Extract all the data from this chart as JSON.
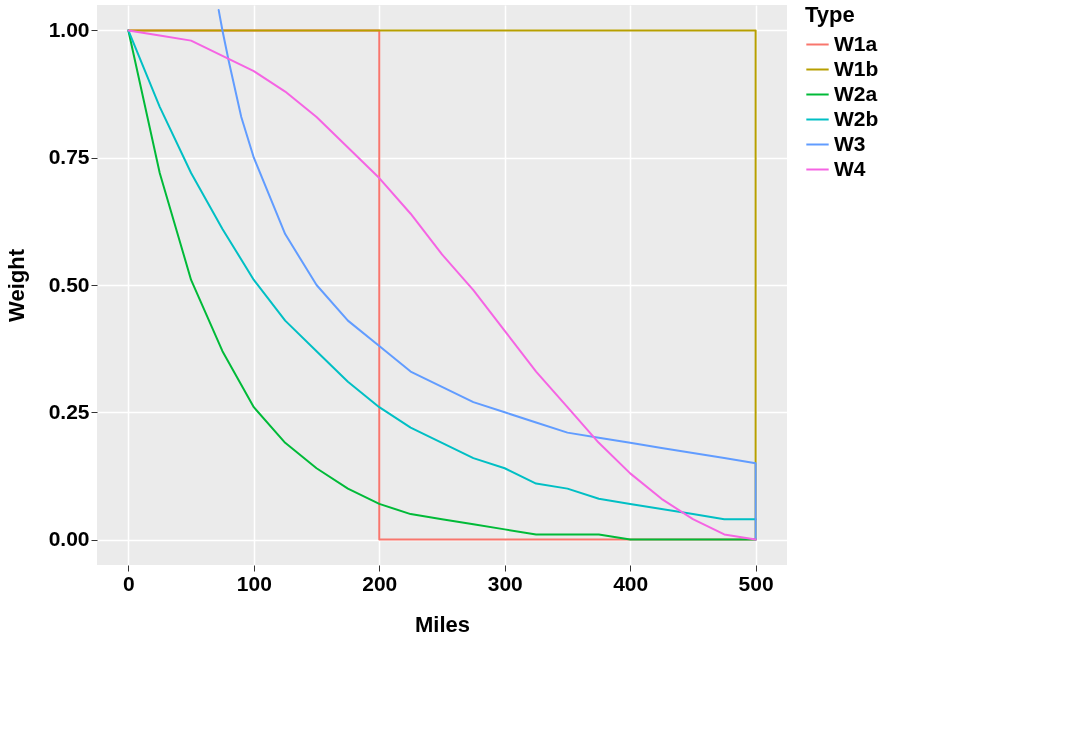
{
  "chart_data": {
    "type": "line",
    "xlabel": "Miles",
    "ylabel": "Weight",
    "legend_title": "Type",
    "legend": "right",
    "grid": true,
    "line_style": "solid",
    "marker": "none",
    "xlim": [
      -25,
      525
    ],
    "xticks": [
      0,
      100,
      200,
      300,
      400,
      500
    ],
    "ylim": [
      -0.05,
      1.05
    ],
    "yticks": [
      {
        "value": 0,
        "label": "0.00"
      },
      {
        "value": 0.25,
        "label": "0.25"
      },
      {
        "value": 0.5,
        "label": "0.50"
      },
      {
        "value": 0.75,
        "label": "0.75"
      },
      {
        "value": 1,
        "label": "1.00"
      }
    ],
    "series": [
      {
        "name": "W1a",
        "color": "#f8766d",
        "x": [
          0,
          200,
          200,
          500
        ],
        "values": [
          1,
          1,
          0,
          0
        ]
      },
      {
        "name": "W1b",
        "color": "#b79f00",
        "x": [
          0,
          500,
          500
        ],
        "values": [
          1,
          1,
          0
        ]
      },
      {
        "name": "W2a",
        "color": "#00ba38",
        "x": [
          0,
          25,
          50,
          75,
          100,
          125,
          150,
          175,
          200,
          225,
          250,
          275,
          300,
          325,
          350,
          375,
          400,
          425,
          450,
          475,
          500
        ],
        "values": [
          1,
          0.72,
          0.51,
          0.37,
          0.26,
          0.19,
          0.14,
          0.1,
          0.07,
          0.05,
          0.04,
          0.03,
          0.02,
          0.01,
          0.01,
          0.01,
          0.0,
          0.0,
          0.0,
          0.0,
          0.0
        ]
      },
      {
        "name": "W2b",
        "color": "#00bfc4",
        "x": [
          0,
          25,
          50,
          75,
          100,
          125,
          150,
          175,
          200,
          225,
          250,
          275,
          300,
          325,
          350,
          375,
          400,
          425,
          450,
          475,
          500
        ],
        "values": [
          1,
          0.85,
          0.72,
          0.61,
          0.51,
          0.43,
          0.37,
          0.31,
          0.26,
          0.22,
          0.19,
          0.16,
          0.14,
          0.11,
          0.1,
          0.08,
          0.07,
          0.06,
          0.05,
          0.04,
          0.04
        ]
      },
      {
        "name": "W3",
        "color": "#619cff",
        "x": [
          72,
          75,
          80,
          90,
          100,
          125,
          150,
          175,
          200,
          225,
          250,
          275,
          300,
          325,
          350,
          375,
          400,
          425,
          450,
          475,
          500,
          500
        ],
        "values": [
          1.04,
          1.0,
          0.94,
          0.83,
          0.75,
          0.6,
          0.5,
          0.43,
          0.38,
          0.33,
          0.3,
          0.27,
          0.25,
          0.23,
          0.21,
          0.2,
          0.19,
          0.18,
          0.17,
          0.16,
          0.15,
          0
        ]
      },
      {
        "name": "W4",
        "color": "#f564e3",
        "x": [
          0,
          25,
          50,
          75,
          100,
          125,
          150,
          175,
          200,
          225,
          250,
          275,
          300,
          325,
          350,
          375,
          400,
          425,
          450,
          475,
          500
        ],
        "values": [
          1,
          0.99,
          0.98,
          0.95,
          0.92,
          0.88,
          0.83,
          0.77,
          0.71,
          0.64,
          0.56,
          0.49,
          0.41,
          0.33,
          0.26,
          0.19,
          0.13,
          0.08,
          0.04,
          0.01,
          0
        ]
      }
    ]
  }
}
